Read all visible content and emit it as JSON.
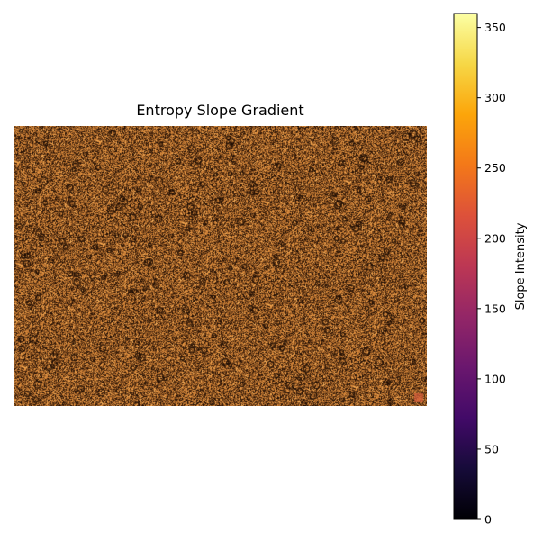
{
  "chart_data": {
    "type": "heatmap",
    "title": "Entropy Slope Gradient",
    "xlabel": "",
    "ylabel": "",
    "axes_visible": false,
    "colormap": "inferno",
    "colorbar": {
      "label": "Slope Intensity",
      "range": [
        0,
        360
      ],
      "ticks": [
        0,
        50,
        100,
        150,
        200,
        250,
        300,
        350
      ]
    },
    "dominant_colors": {
      "background": "#8a5a2b",
      "highlight": "#e08a35",
      "dark_specks": "#2a1608"
    }
  }
}
